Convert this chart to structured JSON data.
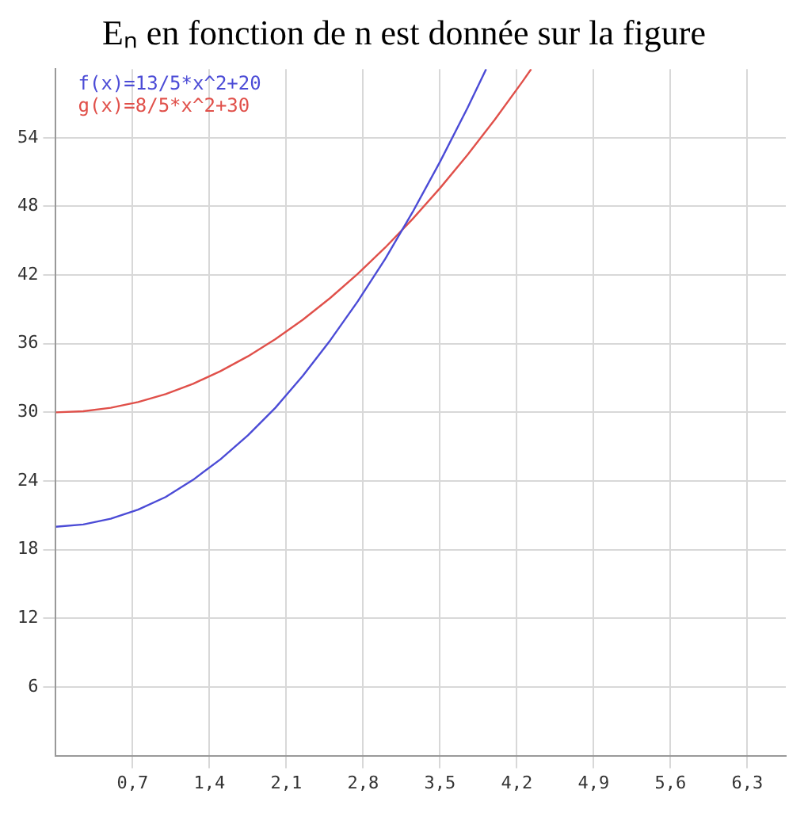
{
  "chart_data": {
    "type": "line",
    "annotations": [
      "Eₙ en fonction de n est donnée sur la figure"
    ],
    "xlim": [
      0,
      6.65
    ],
    "ylim": [
      0,
      60
    ],
    "xticks": [
      {
        "value": 0.7,
        "label": "0,7"
      },
      {
        "value": 1.4,
        "label": "1,4"
      },
      {
        "value": 2.1,
        "label": "2,1"
      },
      {
        "value": 2.8,
        "label": "2,8"
      },
      {
        "value": 3.5,
        "label": "3,5"
      },
      {
        "value": 4.2,
        "label": "4,2"
      },
      {
        "value": 4.9,
        "label": "4,9"
      },
      {
        "value": 5.6,
        "label": "5,6"
      },
      {
        "value": 6.3,
        "label": "6,3"
      }
    ],
    "yticks": [
      6,
      12,
      18,
      24,
      30,
      36,
      42,
      48,
      54
    ],
    "grid": true,
    "legend": "top left",
    "marker": "none",
    "line_style": "solid",
    "series": [
      {
        "name": "f(x)=13/5*x^2+20",
        "color": "#4b4bd6",
        "x": [
          0,
          0.25,
          0.5,
          0.75,
          1,
          1.25,
          1.5,
          1.75,
          2,
          2.25,
          2.5,
          2.75,
          3,
          3.25,
          3.5,
          3.75,
          3.92
        ],
        "values": [
          20,
          20.2,
          20.7,
          21.5,
          22.6,
          24.1,
          25.9,
          28,
          30.4,
          33.2,
          36.3,
          39.7,
          43.4,
          47.5,
          51.9,
          56.6,
          60
        ]
      },
      {
        "name": "g(x)=8/5*x^2+30",
        "color": "#e0504a",
        "x": [
          0,
          0.25,
          0.5,
          0.75,
          1,
          1.25,
          1.5,
          1.75,
          2,
          2.25,
          2.5,
          2.75,
          3,
          3.25,
          3.5,
          3.75,
          4,
          4.25,
          4.33
        ],
        "values": [
          30,
          30.1,
          30.4,
          30.9,
          31.6,
          32.5,
          33.6,
          34.9,
          36.4,
          38.1,
          40,
          42.1,
          44.4,
          46.9,
          49.6,
          52.5,
          55.6,
          58.9,
          60
        ]
      }
    ]
  }
}
